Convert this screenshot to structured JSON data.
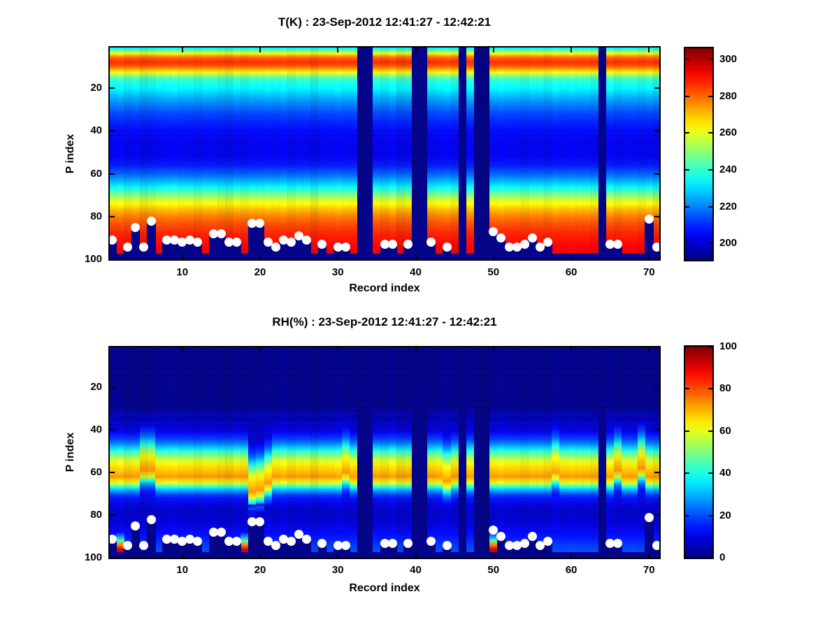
{
  "window": {
    "background": "#ffffff"
  },
  "chart_data": [
    {
      "type": "heatmap",
      "title": "T(K) : 23-Sep-2012 12:41:27 - 12:42:21",
      "xlabel": "Record index",
      "ylabel": "P index",
      "x_ticks": [
        "10",
        "20",
        "30",
        "40",
        "50",
        "60",
        "70"
      ],
      "y_ticks": [
        "20",
        "40",
        "60",
        "80",
        "100"
      ],
      "n_records": 71,
      "p_levels": 100,
      "colormap": "jet",
      "grid": false,
      "colorbar": {
        "ticks": [
          "300",
          "280",
          "260",
          "240",
          "220",
          "200"
        ],
        "tick_values": [
          300,
          280,
          260,
          240,
          220,
          200
        ],
        "vmin": 191,
        "vmax": 306
      },
      "masked_color": "#000089",
      "bottom_mask_start_p": 97.3,
      "missing_records": [
        33,
        34,
        40,
        41,
        46,
        48,
        49,
        64
      ],
      "profile": [
        [
          1,
          235
        ],
        [
          2,
          236
        ],
        [
          3,
          252
        ],
        [
          4,
          262
        ],
        [
          5,
          274
        ],
        [
          6,
          281
        ],
        [
          8,
          287
        ],
        [
          10,
          281
        ],
        [
          12,
          268
        ],
        [
          13,
          261
        ],
        [
          14,
          251
        ],
        [
          16,
          240
        ],
        [
          18,
          236
        ],
        [
          20,
          234
        ],
        [
          24,
          226
        ],
        [
          28,
          219
        ],
        [
          32,
          213
        ],
        [
          36,
          209
        ],
        [
          40,
          206
        ],
        [
          44,
          204
        ],
        [
          48,
          203
        ],
        [
          52,
          204
        ],
        [
          56,
          208
        ],
        [
          60,
          216
        ],
        [
          63,
          224
        ],
        [
          66,
          233
        ],
        [
          68,
          241
        ],
        [
          70,
          249
        ],
        [
          72,
          257
        ],
        [
          74,
          263
        ],
        [
          76,
          269
        ],
        [
          79,
          276
        ],
        [
          82,
          281
        ],
        [
          85,
          285
        ],
        [
          88,
          288
        ],
        [
          91,
          290
        ],
        [
          94,
          292
        ],
        [
          97,
          293
        ]
      ],
      "surface_dots": [
        [
          1,
          91
        ],
        [
          3,
          94
        ],
        [
          4,
          85
        ],
        [
          5,
          94
        ],
        [
          6,
          82
        ],
        [
          8,
          91
        ],
        [
          9,
          91
        ],
        [
          10,
          92
        ],
        [
          11,
          91
        ],
        [
          12,
          92
        ],
        [
          14,
          88
        ],
        [
          15,
          88
        ],
        [
          16,
          92
        ],
        [
          17,
          92
        ],
        [
          19,
          83
        ],
        [
          20,
          83
        ],
        [
          21,
          92
        ],
        [
          22,
          94
        ],
        [
          23,
          91
        ],
        [
          24,
          92
        ],
        [
          25,
          89
        ],
        [
          26,
          91
        ],
        [
          28,
          93
        ],
        [
          30,
          94
        ],
        [
          31,
          94
        ],
        [
          36,
          93
        ],
        [
          37,
          93
        ],
        [
          39,
          93
        ],
        [
          42,
          92
        ],
        [
          44,
          94
        ],
        [
          50,
          87
        ],
        [
          51,
          90
        ],
        [
          52,
          94
        ],
        [
          53,
          94
        ],
        [
          54,
          93
        ],
        [
          55,
          90
        ],
        [
          56,
          94
        ],
        [
          57,
          92
        ],
        [
          65,
          93
        ],
        [
          66,
          93
        ],
        [
          70,
          81
        ],
        [
          71,
          94
        ]
      ]
    },
    {
      "type": "heatmap",
      "title": "RH(%) : 23-Sep-2012 12:41:27 - 12:42:21",
      "xlabel": "Record index",
      "ylabel": "P index",
      "x_ticks": [
        "10",
        "20",
        "30",
        "40",
        "50",
        "60",
        "70"
      ],
      "y_ticks": [
        "20",
        "40",
        "60",
        "80",
        "100"
      ],
      "n_records": 71,
      "p_levels": 100,
      "colormap": "jet",
      "grid": false,
      "colorbar": {
        "ticks": [
          "100",
          "80",
          "60",
          "40",
          "20",
          "0"
        ],
        "tick_values": [
          100,
          80,
          60,
          40,
          20,
          0
        ],
        "vmin": 0,
        "vmax": 100
      },
      "masked_color": "#000089",
      "bottom_mask_start_p": 97.3,
      "missing_records": [
        33,
        34,
        40,
        41,
        46,
        48,
        49,
        64
      ],
      "profile": [
        [
          1,
          1
        ],
        [
          28,
          1
        ],
        [
          31,
          3
        ],
        [
          33,
          6
        ],
        [
          35,
          4
        ],
        [
          37,
          8
        ],
        [
          39,
          7
        ],
        [
          41,
          12
        ],
        [
          44,
          18
        ],
        [
          46,
          24
        ],
        [
          48,
          32
        ],
        [
          50,
          42
        ],
        [
          52,
          50
        ],
        [
          54,
          58
        ],
        [
          56,
          64
        ],
        [
          58,
          67
        ],
        [
          60,
          70
        ],
        [
          62,
          73
        ],
        [
          63,
          68
        ],
        [
          65,
          58
        ],
        [
          66,
          48
        ],
        [
          67,
          38
        ],
        [
          68,
          30
        ],
        [
          70,
          20
        ],
        [
          72,
          14
        ],
        [
          75,
          9
        ],
        [
          78,
          7
        ],
        [
          82,
          8
        ],
        [
          85,
          10
        ],
        [
          88,
          13
        ],
        [
          91,
          15
        ],
        [
          94,
          18
        ],
        [
          97,
          20
        ]
      ],
      "band_shift": {
        "5": -3,
        "6": -3,
        "19": 7,
        "20": 6,
        "21": 3,
        "31": -2,
        "44": 2,
        "58": -2,
        "66": -3,
        "69": -4
      },
      "red_bottom_records": [
        2,
        18,
        50
      ],
      "red_bottom_profile": [
        [
          89,
          20
        ],
        [
          92,
          45
        ],
        [
          94,
          75
        ],
        [
          96,
          92
        ]
      ],
      "surface_dots": [
        [
          1,
          91
        ],
        [
          3,
          94
        ],
        [
          4,
          85
        ],
        [
          5,
          94
        ],
        [
          6,
          82
        ],
        [
          8,
          91
        ],
        [
          9,
          91
        ],
        [
          10,
          92
        ],
        [
          11,
          91
        ],
        [
          12,
          92
        ],
        [
          14,
          88
        ],
        [
          15,
          88
        ],
        [
          16,
          92
        ],
        [
          17,
          92
        ],
        [
          19,
          83
        ],
        [
          20,
          83
        ],
        [
          21,
          92
        ],
        [
          22,
          94
        ],
        [
          23,
          91
        ],
        [
          24,
          92
        ],
        [
          25,
          89
        ],
        [
          26,
          91
        ],
        [
          28,
          93
        ],
        [
          30,
          94
        ],
        [
          31,
          94
        ],
        [
          36,
          93
        ],
        [
          37,
          93
        ],
        [
          39,
          93
        ],
        [
          42,
          92
        ],
        [
          44,
          94
        ],
        [
          50,
          87
        ],
        [
          51,
          90
        ],
        [
          52,
          94
        ],
        [
          53,
          94
        ],
        [
          54,
          93
        ],
        [
          55,
          90
        ],
        [
          56,
          94
        ],
        [
          57,
          92
        ],
        [
          65,
          93
        ],
        [
          66,
          93
        ],
        [
          70,
          81
        ],
        [
          71,
          94
        ]
      ]
    }
  ]
}
